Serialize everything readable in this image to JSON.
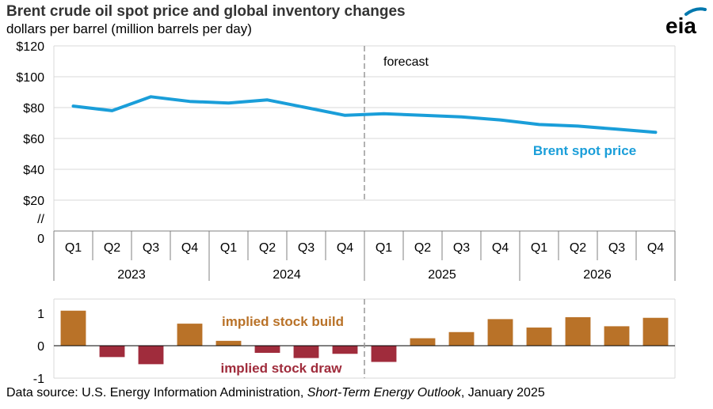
{
  "title": "Brent crude oil spot price and global inventory changes",
  "subtitle": "dollars per barrel (million barrels per day)",
  "logo_text": "eia",
  "source": {
    "prefix": "Data source: U.S. Energy Information Administration, ",
    "publication": "Short-Term Energy Outlook",
    "suffix": ", January 2025"
  },
  "colors": {
    "price_line": "#1a9ed9",
    "stock_build": "#b97228",
    "stock_draw": "#a02c3c",
    "grid": "#d9d9d9",
    "axis_text": "#000000",
    "logo_blue": "#0078ae"
  },
  "chart_data": [
    {
      "type": "line",
      "title": "Brent crude oil spot price",
      "ylabel": "dollars per barrel",
      "y_ticks": [
        "$120",
        "$100",
        "$80",
        "$60",
        "$40",
        "$20",
        "//",
        "0"
      ],
      "ylim": [
        0,
        120
      ],
      "grid": true,
      "quarters": [
        "Q1",
        "Q2",
        "Q3",
        "Q4",
        "Q1",
        "Q2",
        "Q3",
        "Q4",
        "Q1",
        "Q2",
        "Q3",
        "Q4",
        "Q1",
        "Q2",
        "Q3",
        "Q4"
      ],
      "years": [
        "2023",
        "2024",
        "2025",
        "2026"
      ],
      "forecast_label": "forecast",
      "forecast_starts_at_index": 8,
      "series": [
        {
          "name": "Brent spot price",
          "values": [
            81,
            78,
            87,
            84,
            83,
            85,
            80,
            75,
            76,
            75,
            74,
            72,
            69,
            68,
            66,
            64
          ]
        }
      ]
    },
    {
      "type": "bar",
      "ylabel": "million barrels per day",
      "y_ticks": [
        "1",
        "0",
        "-1"
      ],
      "ylim": [
        -1,
        1.3
      ],
      "build_label": "implied stock  build",
      "draw_label": "implied stock draw",
      "values": [
        1.08,
        -0.35,
        -0.57,
        0.68,
        0.15,
        -0.22,
        -0.38,
        -0.25,
        -0.5,
        0.23,
        0.42,
        0.82,
        0.56,
        0.88,
        0.6,
        0.86
      ]
    }
  ]
}
